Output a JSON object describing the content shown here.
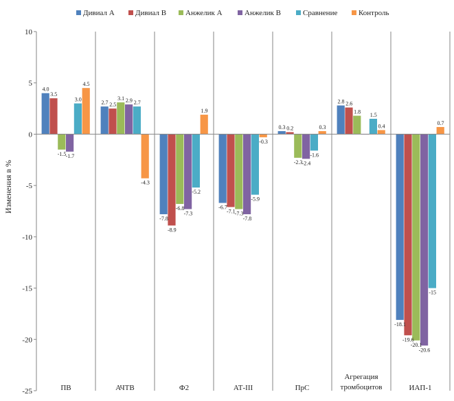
{
  "chart_data": {
    "type": "bar",
    "ylabel": "Изменения в %",
    "ylim": [
      -25,
      10
    ],
    "yticks": [
      10,
      5,
      0,
      -5,
      -10,
      -15,
      -20,
      -25
    ],
    "grid": false,
    "legend_position": "top",
    "categories": [
      "ПВ",
      "АЧТВ",
      "Ф2",
      "АТ-III",
      "ПрС",
      "Агрегация тромбоцитов",
      "ИАП-1"
    ],
    "category_lines": [
      [
        "ПВ"
      ],
      [
        "АЧТВ"
      ],
      [
        "Ф2"
      ],
      [
        "АТ-III"
      ],
      [
        "ПрС"
      ],
      [
        "Агрегация",
        "тромбоцитов"
      ],
      [
        "ИАП-1"
      ]
    ],
    "series": [
      {
        "name": "Дивиал А",
        "color": "#4f81bd",
        "values": [
          4.0,
          2.7,
          -7.8,
          -6.7,
          0.3,
          2.8,
          -18.1
        ],
        "labels": [
          "4.0",
          "2.7",
          "-7.8",
          "-6.7",
          "0.3",
          "2.8",
          "-18.1"
        ]
      },
      {
        "name": "Дивиал В",
        "color": "#c0504d",
        "values": [
          3.5,
          2.5,
          -8.9,
          -7.1,
          0.2,
          2.6,
          -19.6
        ],
        "labels": [
          "3.5",
          "2.5",
          "-8.9",
          "-7.1",
          "0.2",
          "2.6",
          "-19.6"
        ]
      },
      {
        "name": "Анжелик А",
        "color": "#9bbb59",
        "values": [
          -1.5,
          3.1,
          -6.8,
          -7.3,
          -2.3,
          1.8,
          -20.1
        ],
        "labels": [
          "-1.5",
          "3.1",
          "-6.8",
          "-7.3",
          "-2.3",
          "1.8",
          "-20.1"
        ]
      },
      {
        "name": "Анжелик В",
        "color": "#8064a2",
        "values": [
          -1.7,
          2.9,
          -7.3,
          -7.8,
          -2.4,
          0.0,
          -20.6
        ],
        "labels": [
          "-1.7",
          "2.9",
          "-7.3",
          "-7.8",
          "-2.4",
          "",
          "-20.6"
        ]
      },
      {
        "name": "Сравнение",
        "color": "#4bacc6",
        "values": [
          3.0,
          2.7,
          -5.2,
          -5.9,
          -1.6,
          1.5,
          -15.0
        ],
        "labels": [
          "3.0",
          "2.7",
          "-5.2",
          "-5.9",
          "-1.6",
          "1.5",
          "-15"
        ]
      },
      {
        "name": "Контроль",
        "color": "#f79646",
        "values": [
          4.5,
          -4.3,
          1.9,
          -0.3,
          0.3,
          0.4,
          0.7
        ],
        "labels": [
          "4.5",
          "-4.3",
          "1.9",
          "-0.3",
          "0.3",
          "0.4",
          "0.7"
        ]
      }
    ]
  }
}
